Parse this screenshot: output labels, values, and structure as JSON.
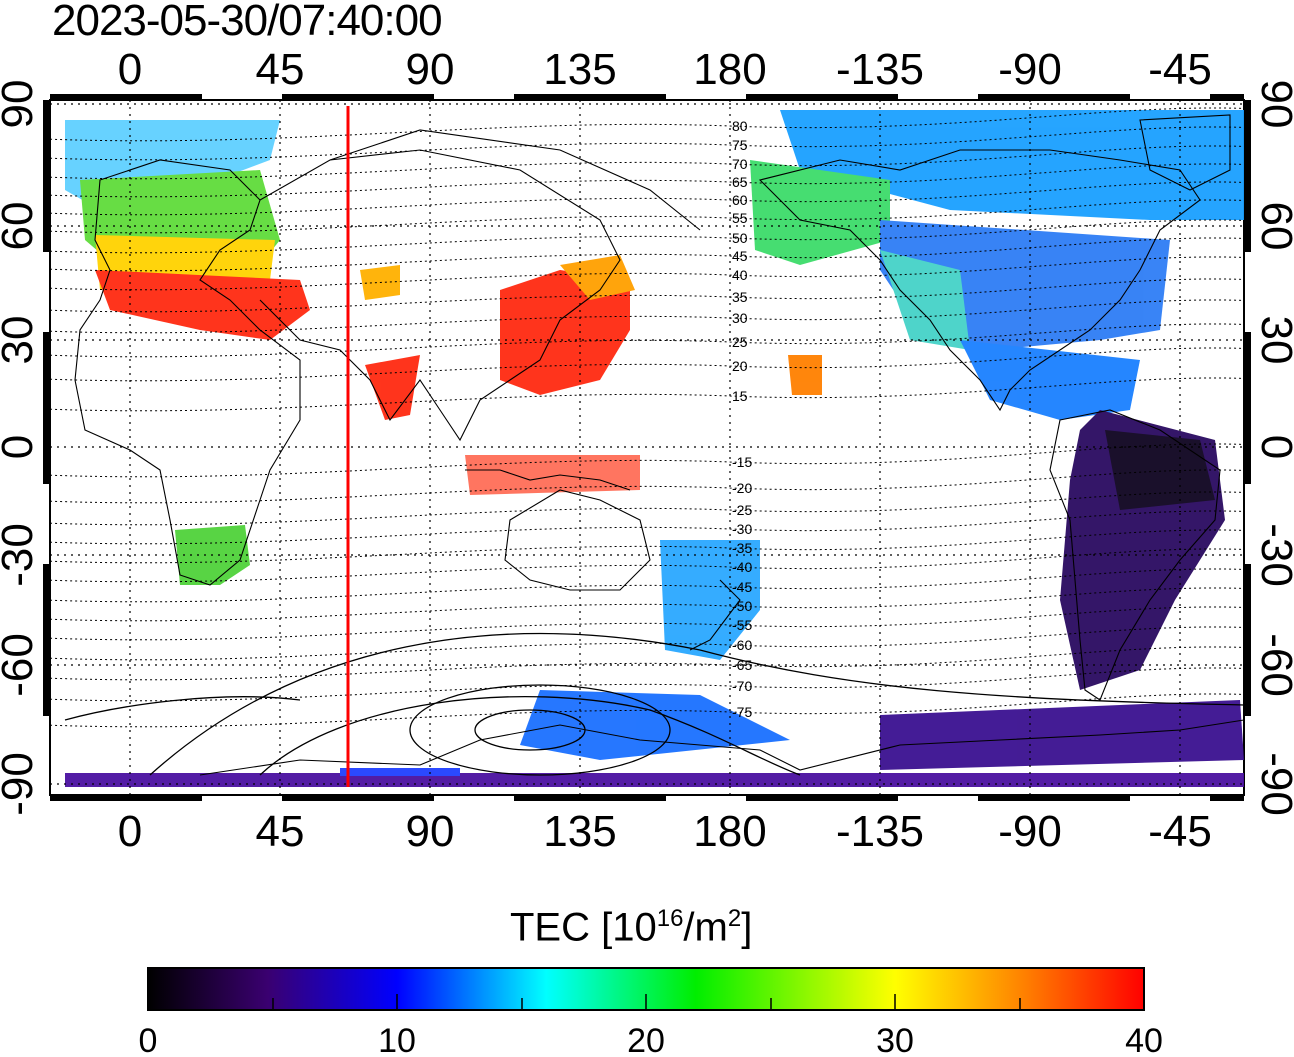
{
  "title": "2023-05-30/07:40:00",
  "map": {
    "top_lon_ticks": [
      "0",
      "45",
      "90",
      "135",
      "180",
      "-135",
      "-90",
      "-45"
    ],
    "bottom_lon_ticks": [
      "0",
      "45",
      "90",
      "135",
      "180",
      "-135",
      "-90",
      "-45"
    ],
    "left_lat_ticks": [
      "90",
      "60",
      "30",
      "0",
      "-30",
      "-60",
      "-90"
    ],
    "right_lat_ticks": [
      "90",
      "60",
      "30",
      "0",
      "-30",
      "-60",
      "-90"
    ],
    "contour_labels": [
      "80",
      "75",
      "70",
      "65",
      "60",
      "55",
      "50",
      "45",
      "40",
      "35",
      "30",
      "25",
      "20",
      "15",
      "-15",
      "-20",
      "-25",
      "-30",
      "-35",
      "-40",
      "-45",
      "-50",
      "-55",
      "-60",
      "-65",
      "-70",
      "-75"
    ],
    "terminator_line_color": "#ff0000",
    "terminator_longitude": 65
  },
  "colorbar": {
    "label_prefix": "TEC  [10",
    "label_exp1": "16",
    "label_mid": "/m",
    "label_exp2": "2",
    "label_suffix": "]",
    "ticks": [
      "0",
      "10",
      "20",
      "30",
      "40"
    ],
    "range": [
      0,
      40
    ],
    "colors": [
      "#000000",
      "#3a0070",
      "#0000ff",
      "#00ffff",
      "#00ff00",
      "#ffff00",
      "#ff0000"
    ]
  }
}
